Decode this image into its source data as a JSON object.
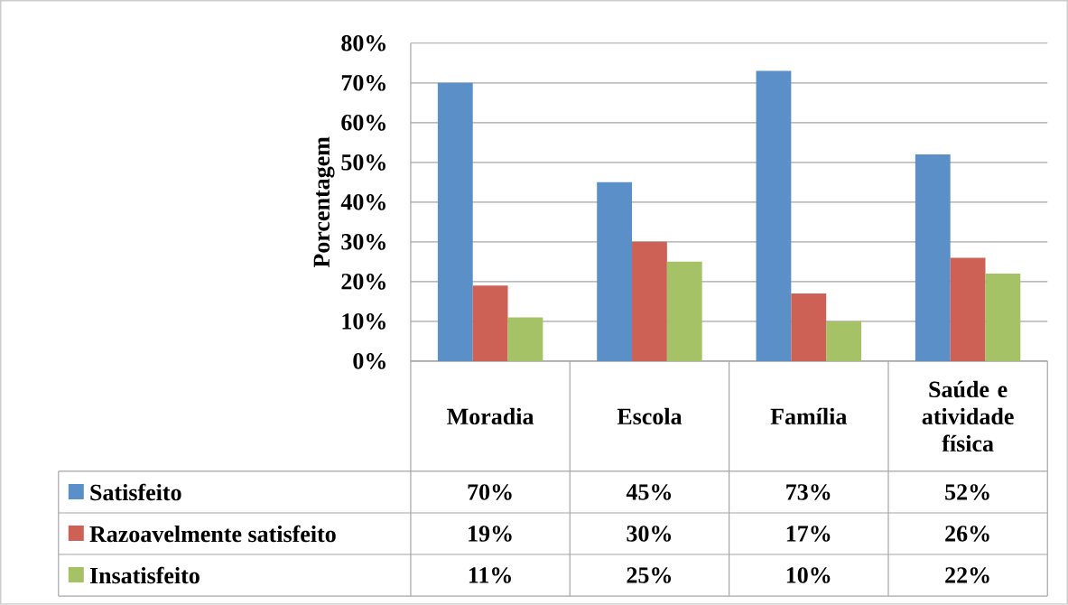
{
  "chart_data": {
    "type": "bar",
    "ylabel": "Porcentagem",
    "categories": [
      "Moradia",
      "Escola",
      "Família",
      "Saúde e atividade física"
    ],
    "series": [
      {
        "name": "Satisfeito",
        "color": "#5b8fc7",
        "values": [
          70,
          45,
          73,
          52
        ],
        "value_labels": [
          "70%",
          "45%",
          "73%",
          "52%"
        ]
      },
      {
        "name": "Razoavelmente satisfeito",
        "color": "#cd6155",
        "values": [
          19,
          30,
          17,
          26
        ],
        "value_labels": [
          "19%",
          "30%",
          "17%",
          "26%"
        ]
      },
      {
        "name": "Insatisfeito",
        "color": "#a5c266",
        "values": [
          11,
          25,
          10,
          22
        ],
        "value_labels": [
          "11%",
          "25%",
          "10%",
          "22%"
        ]
      }
    ],
    "ylim": [
      0,
      80
    ],
    "yticks": [
      {
        "value": 0,
        "label": "0%"
      },
      {
        "value": 10,
        "label": "10%"
      },
      {
        "value": 20,
        "label": "20%"
      },
      {
        "value": 30,
        "label": "30%"
      },
      {
        "value": 40,
        "label": "40%"
      },
      {
        "value": 50,
        "label": "50%"
      },
      {
        "value": 60,
        "label": "60%"
      },
      {
        "value": 70,
        "label": "70%"
      },
      {
        "value": 80,
        "label": "80%"
      }
    ],
    "grid": "y",
    "legend": "bottom"
  }
}
